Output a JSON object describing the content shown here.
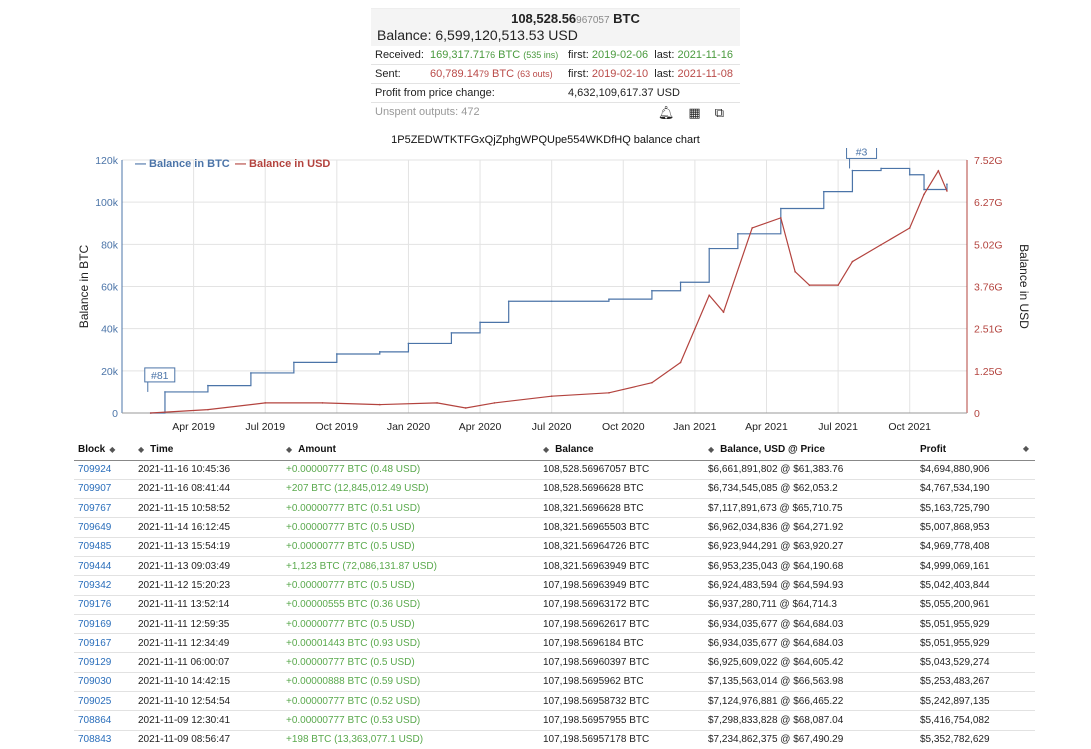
{
  "summary": {
    "balance_btc_main": "108,528.56",
    "balance_btc_small": "967057",
    "btc_unit": "BTC",
    "balance_usd": "Balance: 6,599,120,513.53 USD",
    "received_label": "Received:",
    "received_main": "169,317.71",
    "received_small": "76",
    "received_unit": "BTC",
    "received_ins": "(535 ins)",
    "received_first_label": "first:",
    "received_first": "2019-02-06",
    "received_last_label": "last:",
    "received_last": "2021-11-16",
    "sent_label": "Sent:",
    "sent_main": "60,789.14",
    "sent_small": "79",
    "sent_unit": "BTC",
    "sent_outs": "(63 outs)",
    "sent_first_label": "first:",
    "sent_first": "2019-02-10",
    "sent_last_label": "last:",
    "sent_last": "2021-11-08",
    "profit_label": "Profit from price change:",
    "profit_value": "4,632,109,617.37 USD",
    "unspent_label": "Unspent outputs: 472",
    "icons": [
      "bell-icon",
      "qr-code-icon",
      "copy-icon"
    ]
  },
  "chart_title": "1P5ZEDWTKTFGxQjZphgWPQUpe554WKDfHQ balance chart",
  "chart_data": {
    "type": "line",
    "legend": [
      "Balance in BTC",
      "Balance in USD"
    ],
    "legend_position": "top-left",
    "colors": {
      "btc": "#4b74a8",
      "usd": "#b3433e"
    },
    "x_ticks": [
      "Apr 2019",
      "Jul 2019",
      "Oct 2019",
      "Jan 2020",
      "Apr 2020",
      "Jul 2020",
      "Oct 2020",
      "Jan 2021",
      "Apr 2021",
      "Jul 2021",
      "Oct 2021"
    ],
    "y_left_label": "Balance in BTC",
    "y_left_ticks": [
      "0",
      "20k",
      "40k",
      "60k",
      "80k",
      "100k",
      "120k"
    ],
    "y_left_lim": [
      0,
      120000
    ],
    "y_right_label": "Balance in USD",
    "y_right_ticks": [
      "0",
      "1.25G",
      "2.51G",
      "3.76G",
      "5.02G",
      "6.27G",
      "7.52G"
    ],
    "y_right_lim": [
      0,
      7520000000
    ],
    "flags": [
      "#81",
      "#3"
    ],
    "grid": true,
    "series": [
      {
        "name": "Balance in BTC",
        "axis": "left",
        "x": [
          2019.1,
          2019.15,
          2019.3,
          2019.45,
          2019.6,
          2019.75,
          2019.9,
          2020.0,
          2020.15,
          2020.25,
          2020.35,
          2020.5,
          2020.7,
          2020.85,
          2020.95,
          2021.05,
          2021.15,
          2021.3,
          2021.45,
          2021.55,
          2021.65,
          2021.75,
          2021.8,
          2021.88
        ],
        "values": [
          0,
          10000,
          13000,
          19000,
          24000,
          28000,
          29000,
          33000,
          38000,
          43000,
          53000,
          53000,
          54000,
          58000,
          62000,
          78000,
          85000,
          97000,
          105000,
          115000,
          116000,
          113000,
          106000,
          108529
        ]
      },
      {
        "name": "Balance in USD",
        "axis": "right",
        "x": [
          2019.1,
          2019.3,
          2019.5,
          2019.7,
          2019.9,
          2020.1,
          2020.2,
          2020.3,
          2020.5,
          2020.7,
          2020.85,
          2020.95,
          2021.0,
          2021.05,
          2021.1,
          2021.2,
          2021.3,
          2021.35,
          2021.4,
          2021.5,
          2021.55,
          2021.65,
          2021.75,
          2021.8,
          2021.85,
          2021.88
        ],
        "values": [
          0,
          100000000,
          300000000,
          300000000,
          250000000,
          300000000,
          150000000,
          300000000,
          500000000,
          600000000,
          900000000,
          1500000000,
          2500000000,
          3500000000,
          3000000000,
          5500000000,
          5800000000,
          4200000000,
          3800000000,
          3800000000,
          4500000000,
          5000000000,
          5500000000,
          6500000000,
          7200000000,
          6600000000
        ]
      }
    ]
  },
  "table": {
    "headers": [
      "Block",
      "Time",
      "Amount",
      "Balance",
      "Balance, USD @ Price",
      "Profit"
    ],
    "rows": [
      [
        "709924",
        "2021-11-16 10:45:36",
        "+0.00000777 BTC (0.48 USD)",
        "108,528.56967057 BTC",
        "$6,661,891,802 @ $61,383.76",
        "$4,694,880,906"
      ],
      [
        "709907",
        "2021-11-16 08:41:44",
        "+207 BTC (12,845,012.49 USD)",
        "108,528.5696628 BTC",
        "$6,734,545,085 @ $62,053.2",
        "$4,767,534,190"
      ],
      [
        "709767",
        "2021-11-15 10:58:52",
        "+0.00000777 BTC (0.51 USD)",
        "108,321.5696628 BTC",
        "$7,117,891,673 @ $65,710.75",
        "$5,163,725,790"
      ],
      [
        "709649",
        "2021-11-14 16:12:45",
        "+0.00000777 BTC (0.5 USD)",
        "108,321.56965503 BTC",
        "$6,962,034,836 @ $64,271.92",
        "$5,007,868,953"
      ],
      [
        "709485",
        "2021-11-13 15:54:19",
        "+0.00000777 BTC (0.5 USD)",
        "108,321.56964726 BTC",
        "$6,923,944,291 @ $63,920.27",
        "$4,969,778,408"
      ],
      [
        "709444",
        "2021-11-13 09:03:49",
        "+1,123 BTC (72,086,131.87 USD)",
        "108,321.56963949 BTC",
        "$6,953,235,043 @ $64,190.68",
        "$4,999,069,161"
      ],
      [
        "709342",
        "2021-11-12 15:20:23",
        "+0.00000777 BTC (0.5 USD)",
        "107,198.56963949 BTC",
        "$6,924,483,594 @ $64,594.93",
        "$5,042,403,844"
      ],
      [
        "709176",
        "2021-11-11 13:52:14",
        "+0.00000555 BTC (0.36 USD)",
        "107,198.56963172 BTC",
        "$6,937,280,711 @ $64,714.3",
        "$5,055,200,961"
      ],
      [
        "709169",
        "2021-11-11 12:59:35",
        "+0.00000777 BTC (0.5 USD)",
        "107,198.56962617 BTC",
        "$6,934,035,677 @ $64,684.03",
        "$5,051,955,929"
      ],
      [
        "709167",
        "2021-11-11 12:34:49",
        "+0.00001443 BTC (0.93 USD)",
        "107,198.5696184 BTC",
        "$6,934,035,677 @ $64,684.03",
        "$5,051,955,929"
      ],
      [
        "709129",
        "2021-11-11 06:00:07",
        "+0.00000777 BTC (0.5 USD)",
        "107,198.56960397 BTC",
        "$6,925,609,022 @ $64,605.42",
        "$5,043,529,274"
      ],
      [
        "709030",
        "2021-11-10 14:42:15",
        "+0.00000888 BTC (0.59 USD)",
        "107,198.5695962 BTC",
        "$7,135,563,014 @ $66,563.98",
        "$5,253,483,267"
      ],
      [
        "709025",
        "2021-11-10 12:54:54",
        "+0.00000777 BTC (0.52 USD)",
        "107,198.56958732 BTC",
        "$7,124,976,881 @ $66,465.22",
        "$5,242,897,135"
      ],
      [
        "708864",
        "2021-11-09 12:30:41",
        "+0.00000777 BTC (0.53 USD)",
        "107,198.56957955 BTC",
        "$7,298,833,828 @ $68,087.04",
        "$5,416,754,082"
      ],
      [
        "708843",
        "2021-11-09 08:56:47",
        "+198 BTC (13,363,077.1 USD)",
        "107,198.56957178 BTC",
        "$7,234,862,375 @ $67,490.29",
        "$5,352,782,629"
      ]
    ]
  }
}
